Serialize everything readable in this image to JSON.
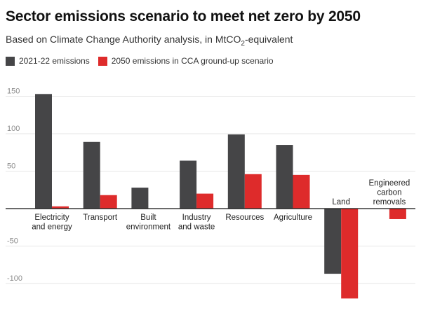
{
  "header": {
    "title": "Sector emissions scenario to meet net zero by 2050",
    "subtitle_pre": "Based on Climate Change Authority analysis, in MtCO",
    "subtitle_sub": "2",
    "subtitle_post": "-equivalent"
  },
  "colors": {
    "series_2021": "#454547",
    "series_2050": "#de2b2b",
    "grid": "#e6e6e6",
    "axis": "#111111"
  },
  "chart_data": {
    "type": "bar",
    "title": "Sector emissions scenario to meet net zero by 2050",
    "subtitle": "Based on Climate Change Authority analysis, in MtCO2-equivalent",
    "categories": [
      [
        "Electricity",
        "and energy"
      ],
      [
        "Transport"
      ],
      [
        "Built",
        "environment"
      ],
      [
        "Industry",
        "and waste"
      ],
      [
        "Resources"
      ],
      [
        "Agriculture"
      ],
      [
        "Land"
      ],
      [
        "Engineered",
        "carbon",
        "removals"
      ]
    ],
    "series": [
      {
        "name": "2021-22 emissions",
        "values": [
          153,
          89,
          28,
          64,
          99,
          85,
          -87,
          null
        ]
      },
      {
        "name": "2050 emissions in CCA ground-up scenario",
        "values": [
          3,
          18,
          null,
          20,
          46,
          45,
          -120,
          -14
        ]
      }
    ],
    "y_ticks": [
      150,
      100,
      50,
      -50,
      -100
    ],
    "ylim": [
      -125,
      160
    ],
    "grid": true,
    "legend_position": "top-left"
  }
}
